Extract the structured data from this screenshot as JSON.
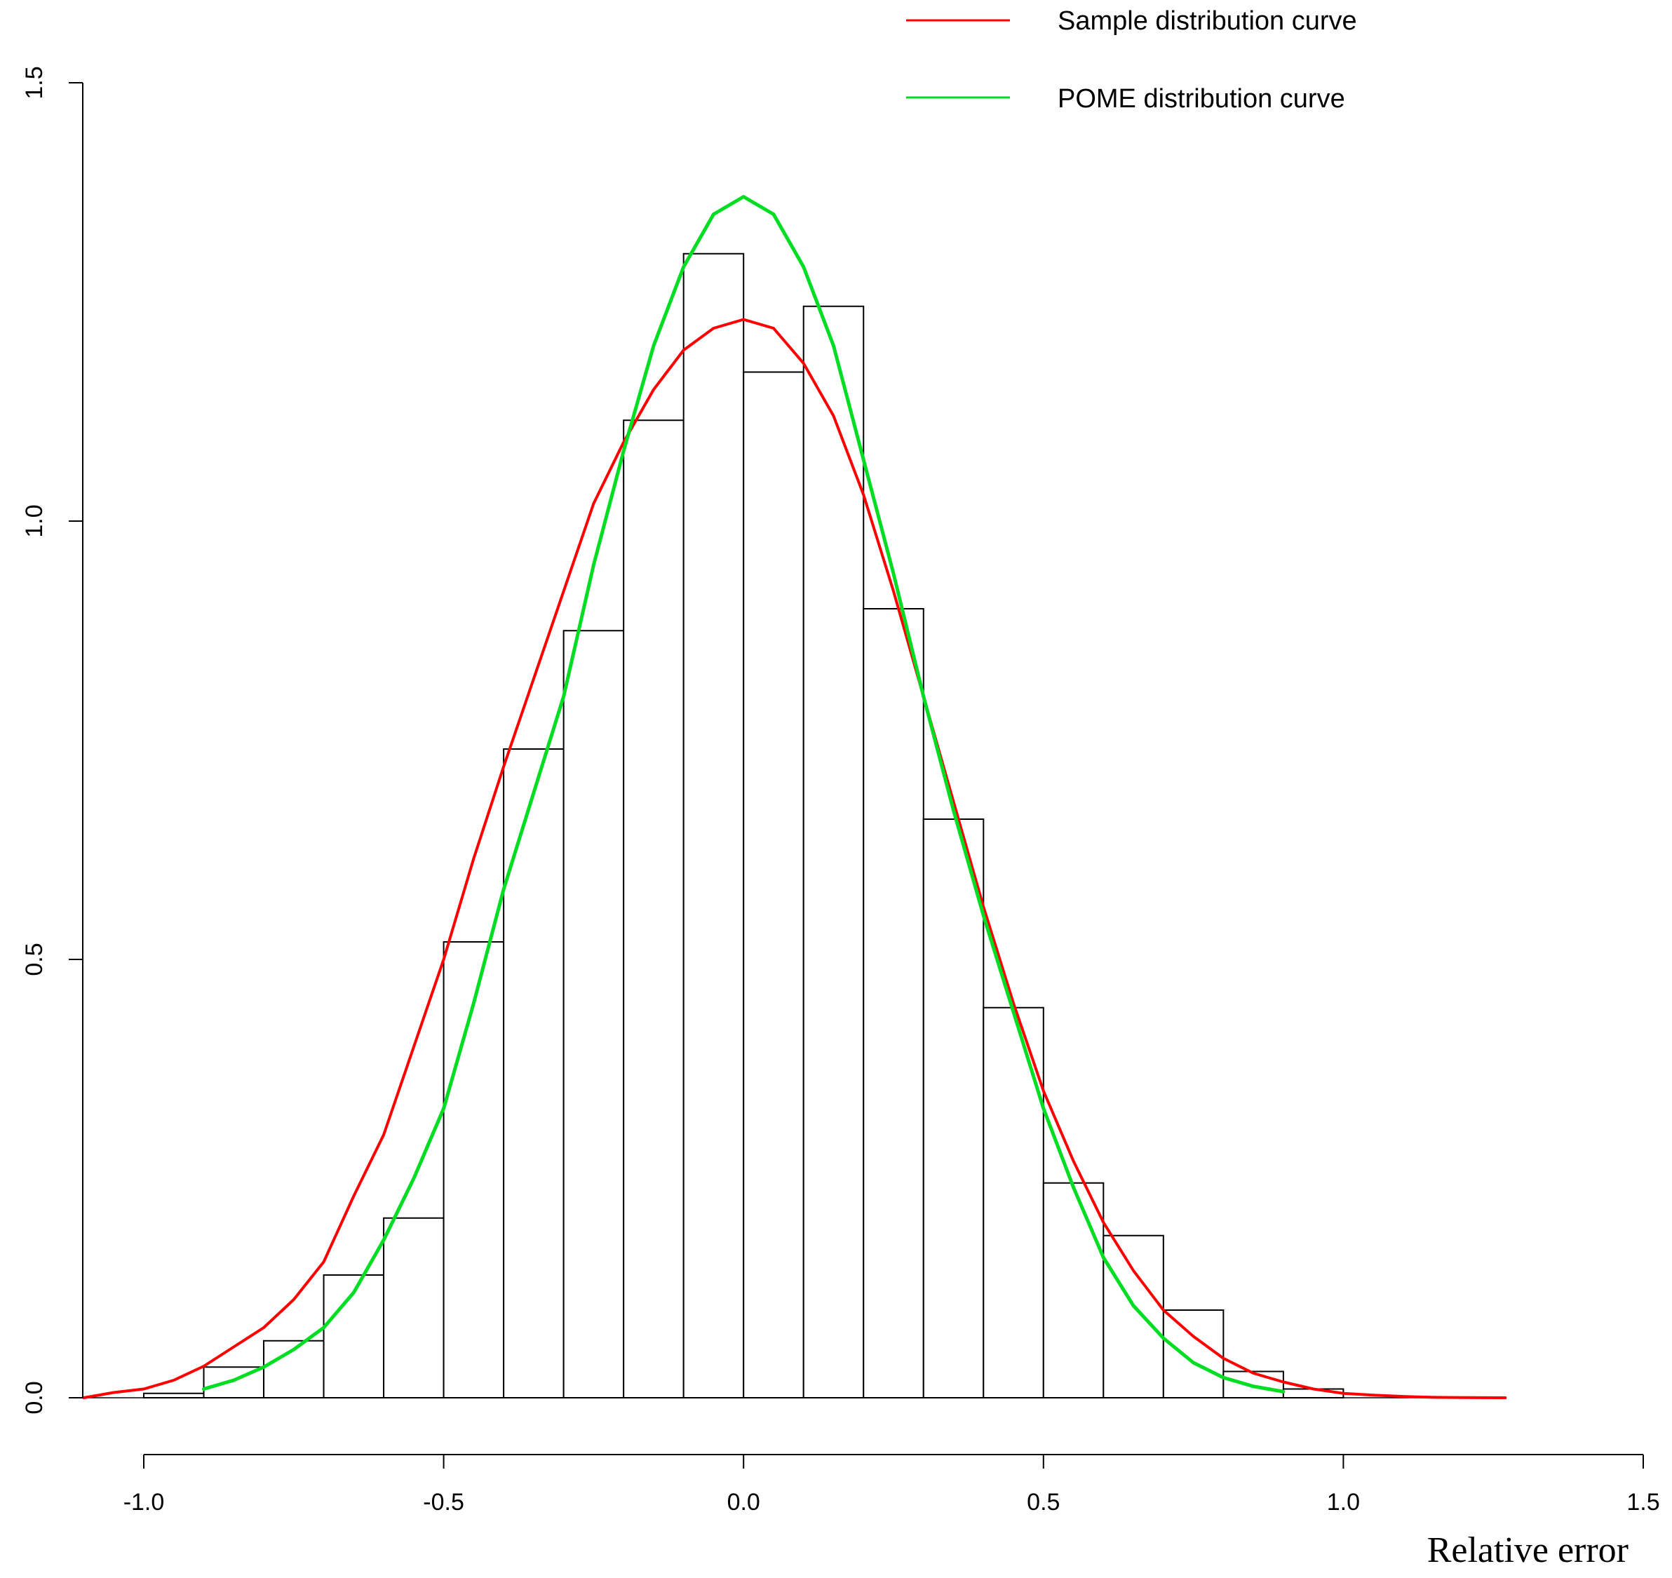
{
  "chart_data": {
    "type": "bar",
    "title": "",
    "xlabel": "Relative error",
    "ylabel": "",
    "xlim": [
      -1.1,
      1.5
    ],
    "ylim": [
      0,
      1.5
    ],
    "x_ticks": [
      -1.0,
      -0.5,
      0.0,
      0.5,
      1.0,
      1.5
    ],
    "x_tick_labels": [
      "-1.0",
      "-0.5",
      "0.0",
      "0.5",
      "1.0",
      "1.5"
    ],
    "y_ticks": [
      0.0,
      0.5,
      1.0,
      1.5
    ],
    "y_tick_labels": [
      "0.0",
      "0.5",
      "1.0",
      "1.5"
    ],
    "grid": false,
    "legend_position": "top-right",
    "histogram": {
      "bin_edges": [
        -1.0,
        -0.9,
        -0.8,
        -0.7,
        -0.6,
        -0.5,
        -0.4,
        -0.3,
        -0.2,
        -0.1,
        0.0,
        0.1,
        0.2,
        0.3,
        0.4,
        0.5,
        0.6,
        0.7,
        0.8,
        0.9,
        1.0
      ],
      "densities": [
        0.005,
        0.035,
        0.065,
        0.14,
        0.205,
        0.52,
        0.74,
        0.875,
        1.115,
        1.305,
        1.17,
        1.245,
        0.9,
        0.66,
        0.445,
        0.245,
        0.185,
        0.1,
        0.03,
        0.01
      ],
      "edge_color": "#000000",
      "fill_color": "#ffffff"
    },
    "series": [
      {
        "name": "Sample distribution curve",
        "color": "#ff0000",
        "x": [
          -1.1,
          -1.05,
          -1.0,
          -0.95,
          -0.9,
          -0.85,
          -0.8,
          -0.75,
          -0.7,
          -0.65,
          -0.6,
          -0.55,
          -0.5,
          -0.45,
          -0.4,
          -0.35,
          -0.3,
          -0.25,
          -0.2,
          -0.15,
          -0.1,
          -0.05,
          0.0,
          0.05,
          0.1,
          0.15,
          0.2,
          0.25,
          0.3,
          0.35,
          0.4,
          0.45,
          0.5,
          0.55,
          0.6,
          0.65,
          0.7,
          0.75,
          0.8,
          0.85,
          0.9,
          0.95,
          1.0,
          1.05,
          1.1,
          1.15,
          1.2,
          1.27
        ],
        "y": [
          0.0,
          0.006,
          0.01,
          0.02,
          0.036,
          0.058,
          0.08,
          0.112,
          0.155,
          0.23,
          0.3,
          0.4,
          0.5,
          0.615,
          0.72,
          0.82,
          0.92,
          1.02,
          1.09,
          1.15,
          1.195,
          1.22,
          1.23,
          1.22,
          1.18,
          1.12,
          1.03,
          0.92,
          0.8,
          0.68,
          0.56,
          0.45,
          0.35,
          0.27,
          0.2,
          0.145,
          0.1,
          0.07,
          0.045,
          0.028,
          0.018,
          0.01,
          0.005,
          0.003,
          0.0015,
          0.0005,
          0.0002,
          0.0
        ]
      },
      {
        "name": "POME distribution curve",
        "color": "#00dd22",
        "x": [
          -0.9,
          -0.85,
          -0.8,
          -0.75,
          -0.7,
          -0.65,
          -0.6,
          -0.55,
          -0.5,
          -0.45,
          -0.4,
          -0.35,
          -0.3,
          -0.25,
          -0.2,
          -0.15,
          -0.1,
          -0.05,
          0.0,
          0.05,
          0.1,
          0.15,
          0.2,
          0.25,
          0.3,
          0.35,
          0.4,
          0.45,
          0.5,
          0.55,
          0.6,
          0.65,
          0.7,
          0.75,
          0.8,
          0.85,
          0.9
        ],
        "y": [
          0.01,
          0.02,
          0.035,
          0.055,
          0.08,
          0.12,
          0.18,
          0.25,
          0.33,
          0.45,
          0.58,
          0.69,
          0.8,
          0.95,
          1.08,
          1.2,
          1.29,
          1.35,
          1.37,
          1.35,
          1.29,
          1.2,
          1.07,
          0.94,
          0.8,
          0.67,
          0.55,
          0.44,
          0.33,
          0.24,
          0.16,
          0.105,
          0.068,
          0.04,
          0.023,
          0.013,
          0.007
        ]
      }
    ],
    "legend": [
      {
        "label": "Sample distribution curve",
        "color": "#ff0000"
      },
      {
        "label": "POME distribution curve",
        "color": "#00dd22"
      }
    ]
  }
}
